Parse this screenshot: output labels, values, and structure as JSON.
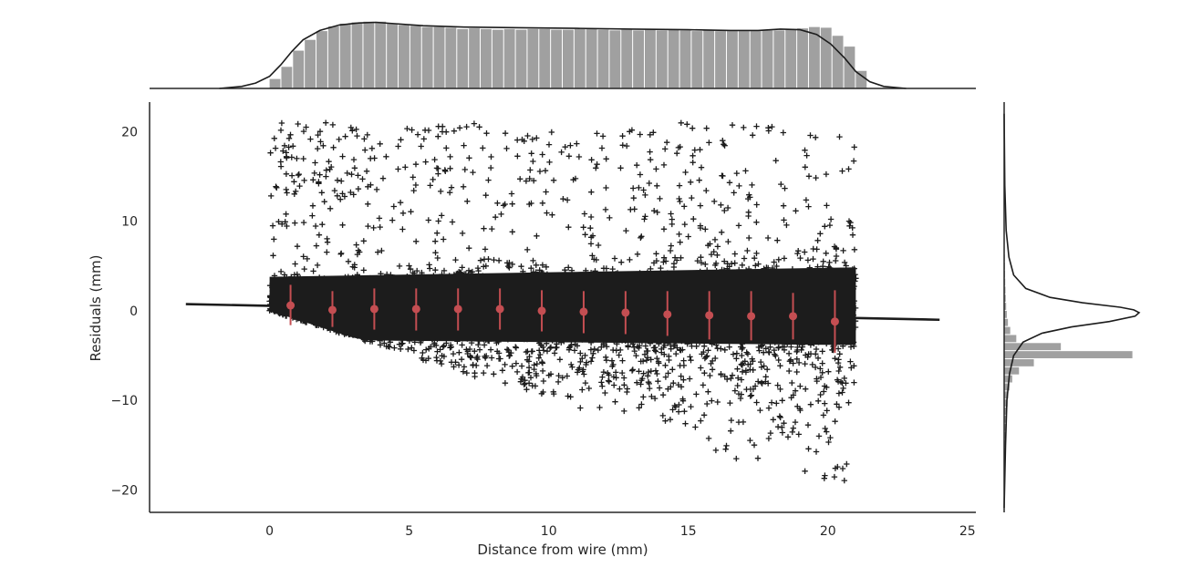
{
  "chart_data": {
    "type": "scatter",
    "xlabel": "Distance from wire (mm)",
    "ylabel": "Residuals (mm)",
    "xlim": [
      -4.3,
      25.3
    ],
    "ylim": [
      -22.5,
      23.3
    ],
    "x_ticks": [
      "0",
      "5",
      "10",
      "15",
      "20",
      "25"
    ],
    "y_ticks": [
      "−20",
      "−10",
      "0",
      "10",
      "20"
    ],
    "x_tick_values": [
      0,
      5,
      10,
      15,
      20,
      25
    ],
    "y_tick_values": [
      -20,
      -10,
      0,
      10,
      20
    ],
    "grid": false,
    "scatter_marker": "+",
    "scatter_color": "#1c1c1c",
    "scatter_x_range": [
      0,
      21
    ],
    "scatter_y_range": [
      -20.5,
      21
    ],
    "regression_line": {
      "x": [
        -3,
        24
      ],
      "y": [
        0.75,
        -1.0
      ],
      "color": "#1c1c1c"
    },
    "binned_means": {
      "color": "#c44e52",
      "x": [
        0.75,
        2.25,
        3.75,
        5.25,
        6.75,
        8.25,
        9.75,
        11.25,
        12.75,
        14.25,
        15.75,
        17.25,
        18.75,
        20.25
      ],
      "mean": [
        0.6,
        0.1,
        0.2,
        0.2,
        0.2,
        0.2,
        0.0,
        -0.1,
        -0.2,
        -0.4,
        -0.5,
        -0.6,
        -0.6,
        -1.2
      ],
      "lower": [
        -1.6,
        -1.8,
        -2.1,
        -2.2,
        -2.2,
        -2.1,
        -2.3,
        -2.5,
        -2.6,
        -2.8,
        -3.2,
        -3.3,
        -3.2,
        -4.7
      ],
      "upper": [
        2.9,
        2.2,
        2.5,
        2.5,
        2.5,
        2.5,
        2.3,
        2.2,
        2.2,
        2.2,
        2.2,
        2.2,
        2.0,
        2.3
      ]
    },
    "top_marginal": {
      "type": "histogram_kde",
      "bar_color": "#a0a0a0",
      "bin_width": 0.42,
      "bins_start": 0,
      "heights": [
        0.14,
        0.32,
        0.56,
        0.72,
        0.85,
        0.92,
        0.96,
        0.98,
        0.99,
        0.99,
        0.96,
        0.94,
        0.93,
        0.91,
        0.91,
        0.9,
        0.88,
        0.89,
        0.88,
        0.87,
        0.88,
        0.87,
        0.88,
        0.88,
        0.87,
        0.87,
        0.88,
        0.88,
        0.87,
        0.86,
        0.87,
        0.86,
        0.87,
        0.86,
        0.87,
        0.86,
        0.85,
        0.86,
        0.85,
        0.85,
        0.85,
        0.85,
        0.86,
        0.86,
        0.87,
        0.89,
        0.91,
        0.9,
        0.78,
        0.62,
        0.26
      ],
      "kde_x": [
        -1.8,
        -1.0,
        -0.5,
        0,
        0.4,
        0.8,
        1.2,
        1.8,
        2.5,
        3.2,
        3.8,
        4.5,
        5.5,
        7,
        9,
        11,
        13,
        15,
        16.5,
        17.5,
        18.3,
        19.0,
        19.6,
        20.1,
        20.6,
        21.0,
        21.5,
        22.0,
        22.8
      ],
      "kde_y": [
        0.0,
        0.03,
        0.08,
        0.18,
        0.35,
        0.55,
        0.72,
        0.86,
        0.94,
        0.97,
        0.98,
        0.96,
        0.93,
        0.91,
        0.9,
        0.89,
        0.88,
        0.87,
        0.86,
        0.86,
        0.88,
        0.87,
        0.8,
        0.66,
        0.45,
        0.25,
        0.1,
        0.03,
        0.0
      ]
    },
    "right_marginal": {
      "type": "histogram_kde",
      "bar_color": "#a0a0a0",
      "bin_width": 0.9,
      "bins_start": -20.7,
      "heights": [
        0.005,
        0.005,
        0.005,
        0.005,
        0.007,
        0.008,
        0.01,
        0.012,
        0.014,
        0.017,
        0.02,
        0.025,
        0.03,
        0.04,
        0.06,
        0.11,
        0.22,
        0.95,
        0.42,
        0.09,
        0.045,
        0.028,
        0.02,
        0.015,
        0.012,
        0.01,
        0.008,
        0.007,
        0.006,
        0.005,
        0.004,
        0.004,
        0.003,
        0.003,
        0.002,
        0.002,
        0.001,
        0.001,
        0.001,
        0.001,
        0.001,
        0.001,
        0.001,
        0.001,
        0.001,
        0.001
      ],
      "kde_y": [
        -22,
        -15,
        -10,
        -7,
        -5,
        -3.5,
        -2.5,
        -1.8,
        -1.2,
        -0.6,
        -0.2,
        0.1,
        0.4,
        0.9,
        1.5,
        2.5,
        4,
        6,
        9,
        14,
        22
      ],
      "kde_x": [
        0.0,
        0.01,
        0.02,
        0.04,
        0.07,
        0.14,
        0.28,
        0.5,
        0.78,
        0.97,
        1.0,
        0.96,
        0.86,
        0.58,
        0.34,
        0.16,
        0.07,
        0.035,
        0.015,
        0.005,
        0.0
      ]
    }
  }
}
